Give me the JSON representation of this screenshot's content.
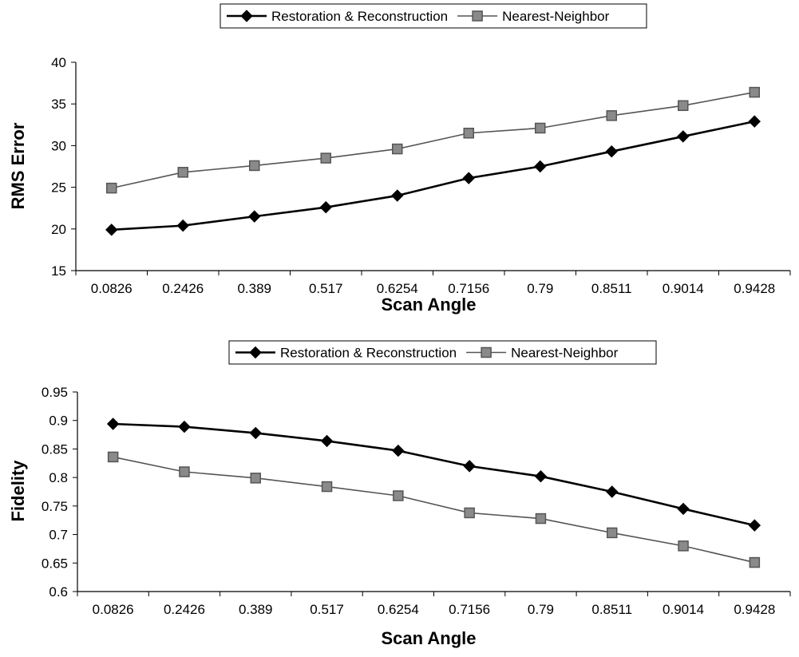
{
  "chart_data": [
    {
      "type": "line",
      "title": "",
      "xlabel": "Scan Angle",
      "ylabel": "RMS Error",
      "categories": [
        "0.0826",
        "0.2426",
        "0.389",
        "0.517",
        "0.6254",
        "0.7156",
        "0.79",
        "0.8511",
        "0.9014",
        "0.9428"
      ],
      "yticks": [
        "15",
        "20",
        "25",
        "30",
        "35",
        "40"
      ],
      "ylim": [
        15,
        40
      ],
      "grid": false,
      "legend_position": "top",
      "series": [
        {
          "name": "Restoration & Reconstruction",
          "marker": "diamond",
          "color": "#000000",
          "values": [
            19.9,
            20.4,
            21.5,
            22.6,
            24.0,
            26.1,
            27.5,
            29.3,
            31.1,
            32.9
          ]
        },
        {
          "name": "Nearest-Neighbor",
          "marker": "square",
          "color": "#555555",
          "values": [
            24.9,
            26.8,
            27.6,
            28.5,
            29.6,
            31.5,
            32.1,
            33.6,
            34.8,
            36.4
          ]
        }
      ]
    },
    {
      "type": "line",
      "title": "",
      "xlabel": "Scan Angle",
      "ylabel": "Fidelity",
      "categories": [
        "0.0826",
        "0.2426",
        "0.389",
        "0.517",
        "0.6254",
        "0.7156",
        "0.79",
        "0.8511",
        "0.9014",
        "0.9428"
      ],
      "yticks": [
        "0.6",
        "0.65",
        "0.7",
        "0.75",
        "0.8",
        "0.85",
        "0.9",
        "0.95"
      ],
      "ylim": [
        0.6,
        0.95
      ],
      "grid": false,
      "legend_position": "top",
      "series": [
        {
          "name": "Restoration & Reconstruction",
          "marker": "diamond",
          "color": "#000000",
          "values": [
            0.894,
            0.889,
            0.878,
            0.864,
            0.847,
            0.82,
            0.802,
            0.775,
            0.745,
            0.716
          ]
        },
        {
          "name": "Nearest-Neighbor",
          "marker": "square",
          "color": "#555555",
          "values": [
            0.836,
            0.81,
            0.799,
            0.784,
            0.768,
            0.738,
            0.728,
            0.703,
            0.68,
            0.651
          ]
        }
      ]
    }
  ]
}
